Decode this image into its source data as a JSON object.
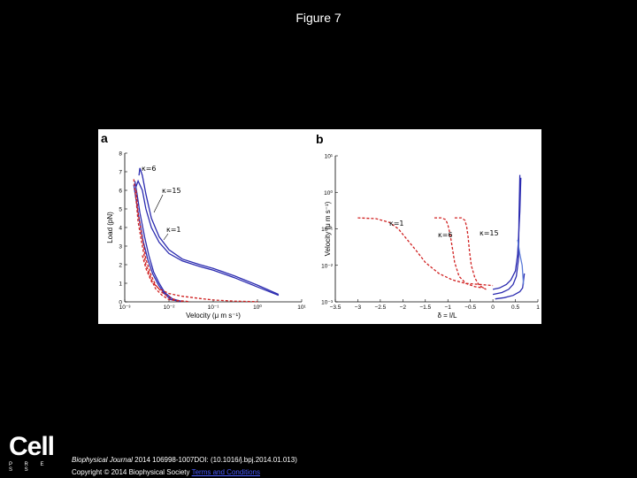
{
  "page": {
    "title": "Figure 7"
  },
  "footer": {
    "logo_word": "Cell",
    "logo_press": "P R E S S",
    "citation_journal": "Biophysical Journal",
    "citation_rest": " 2014 106998-1007DOI: (10.1016/j.bpj.2014.01.013)",
    "copyright": "Copyright © 2014 Biophysical Society ",
    "terms": "Terms and Conditions"
  },
  "chart_data": [
    {
      "type": "line",
      "panel_label": "a",
      "xlabel": "Velocity (μ m s⁻¹)",
      "ylabel": "Load (pN)",
      "x_scale": "log",
      "xlim": [
        0.001,
        10
      ],
      "ylim": [
        0,
        8
      ],
      "x_ticks": [
        0.001,
        0.01,
        0.1,
        1,
        10
      ],
      "x_tick_labels": [
        "10⁻³",
        "10⁻²",
        "10⁻¹",
        "10⁰",
        "10¹"
      ],
      "y_ticks": [
        0,
        1,
        2,
        3,
        4,
        5,
        6,
        7,
        8
      ],
      "y_tick_labels": [
        "0",
        "1",
        "2",
        "3",
        "4",
        "5",
        "6",
        "7",
        "8"
      ],
      "annotations": [
        "κ=6",
        "κ=15",
        "κ=1"
      ],
      "series": [
        {
          "color": "#2b2bb0",
          "dash": "solid",
          "x": [
            0.0021,
            0.0022,
            0.0025,
            0.003,
            0.004,
            0.006,
            0.01,
            0.02,
            0.05,
            0.1,
            0.3,
            1,
            3
          ],
          "y": [
            6.8,
            7.2,
            6.8,
            5.8,
            4.5,
            3.5,
            2.8,
            2.3,
            2.0,
            1.8,
            1.4,
            0.9,
            0.4
          ]
        },
        {
          "color": "#2b2bb0",
          "dash": "solid",
          "x": [
            0.0018,
            0.002,
            0.0025,
            0.003,
            0.004,
            0.006,
            0.01,
            0.02,
            0.05,
            0.1,
            0.3,
            1,
            3
          ],
          "y": [
            6.2,
            6.5,
            6.0,
            5.0,
            4.0,
            3.2,
            2.6,
            2.2,
            1.9,
            1.7,
            1.3,
            0.8,
            0.35
          ]
        },
        {
          "color": "#2b2bb0",
          "dash": "solid",
          "x": [
            0.0017,
            0.0019,
            0.0022,
            0.0028,
            0.0035,
            0.0045,
            0.006,
            0.008,
            0.012,
            0.02
          ],
          "y": [
            6.5,
            5.8,
            4.8,
            3.5,
            2.5,
            1.6,
            1.0,
            0.5,
            0.15,
            0.02
          ]
        },
        {
          "color": "#2b2bb0",
          "dash": "solid",
          "x": [
            0.0016,
            0.0018,
            0.0021,
            0.0026,
            0.0033,
            0.0043,
            0.0058,
            0.0078,
            0.011,
            0.018
          ],
          "y": [
            6.3,
            5.5,
            4.5,
            3.3,
            2.3,
            1.5,
            0.9,
            0.45,
            0.12,
            0.02
          ]
        },
        {
          "color": "#d02020",
          "dash": "dashed",
          "x": [
            0.0016,
            0.0018,
            0.002,
            0.0025,
            0.003,
            0.004,
            0.005,
            0.007,
            0.01,
            0.02
          ],
          "y": [
            6.6,
            5.5,
            4.3,
            3.0,
            2.0,
            1.2,
            0.7,
            0.35,
            0.12,
            0.02
          ]
        },
        {
          "color": "#d02020",
          "dash": "dashed",
          "x": [
            0.0018,
            0.002,
            0.0025,
            0.003,
            0.004,
            0.005,
            0.007,
            0.01,
            0.015,
            0.03
          ],
          "y": [
            6.0,
            4.8,
            3.4,
            2.3,
            1.4,
            0.9,
            0.5,
            0.25,
            0.08,
            0.01
          ]
        },
        {
          "color": "#d02020",
          "dash": "dashed",
          "x": [
            0.0025,
            0.003,
            0.004,
            0.006,
            0.01,
            0.02,
            0.05,
            0.1,
            0.3,
            1
          ],
          "y": [
            2.5,
            1.8,
            1.1,
            0.7,
            0.45,
            0.3,
            0.18,
            0.1,
            0.04,
            0.01
          ]
        }
      ]
    },
    {
      "type": "line",
      "panel_label": "b",
      "xlabel": "δ = l/L",
      "ylabel": "Velocity (μ m s⁻¹)",
      "y_scale": "log",
      "xlim": [
        -3.5,
        1
      ],
      "ylim": [
        0.001,
        10
      ],
      "x_ticks": [
        -3.5,
        -3,
        -2.5,
        -2,
        -1.5,
        -1,
        -0.5,
        0,
        0.5,
        1
      ],
      "x_tick_labels": [
        "−3.5",
        "−3",
        "−2.5",
        "−2",
        "−1.5",
        "−1",
        "−0.5",
        "0",
        "0.5",
        "1"
      ],
      "y_ticks": [
        0.001,
        0.01,
        0.1,
        1,
        10
      ],
      "y_tick_labels": [
        "10⁻³",
        "10⁻²",
        "10⁻¹",
        "10⁰",
        "10¹"
      ],
      "annotations": [
        "κ=1",
        "κ=6",
        "κ=15"
      ],
      "series": [
        {
          "color": "#d02020",
          "dash": "dashed",
          "x": [
            -3.0,
            -2.6,
            -2.3,
            -2.1,
            -1.9,
            -1.7,
            -1.5,
            -1.2,
            -0.9,
            -0.6,
            -0.3,
            0.0
          ],
          "y": [
            0.2,
            0.19,
            0.15,
            0.1,
            0.05,
            0.025,
            0.012,
            0.006,
            0.004,
            0.0032,
            0.003,
            0.0028
          ]
        },
        {
          "color": "#d02020",
          "dash": "dashed",
          "x": [
            -1.3,
            -1.15,
            -1.05,
            -1.0,
            -0.95,
            -0.9,
            -0.85,
            -0.75,
            -0.6,
            -0.4,
            -0.2
          ],
          "y": [
            0.2,
            0.2,
            0.18,
            0.13,
            0.07,
            0.03,
            0.012,
            0.005,
            0.0032,
            0.0026,
            0.0024
          ]
        },
        {
          "color": "#d02020",
          "dash": "dashed",
          "x": [
            -0.85,
            -0.7,
            -0.62,
            -0.58,
            -0.55,
            -0.52,
            -0.48,
            -0.4,
            -0.3,
            -0.15
          ],
          "y": [
            0.2,
            0.2,
            0.17,
            0.11,
            0.06,
            0.025,
            0.01,
            0.0045,
            0.0028,
            0.0022
          ]
        },
        {
          "color": "#2b2bb0",
          "dash": "solid",
          "x": [
            0.0,
            0.15,
            0.3,
            0.4,
            0.5,
            0.55,
            0.6,
            0.62
          ],
          "y": [
            0.0022,
            0.0024,
            0.003,
            0.004,
            0.007,
            0.02,
            0.3,
            2.5
          ]
        },
        {
          "color": "#2b2bb0",
          "dash": "solid",
          "x": [
            0.0,
            0.2,
            0.35,
            0.45,
            0.52,
            0.57,
            0.58,
            0.6
          ],
          "y": [
            0.0016,
            0.0018,
            0.0022,
            0.003,
            0.005,
            0.015,
            0.2,
            3.0
          ]
        },
        {
          "color": "#2b2bb0",
          "dash": "solid",
          "x": [
            0.05,
            0.25,
            0.45,
            0.6,
            0.66,
            0.7
          ],
          "y": [
            0.0012,
            0.0013,
            0.0015,
            0.0019,
            0.0024,
            0.006
          ]
        },
        {
          "color": "#5a7ad8",
          "dash": "solid",
          "x": [
            0.55,
            0.6,
            0.65,
            0.68
          ],
          "y": [
            0.05,
            0.02,
            0.01,
            0.003
          ]
        }
      ]
    }
  ]
}
